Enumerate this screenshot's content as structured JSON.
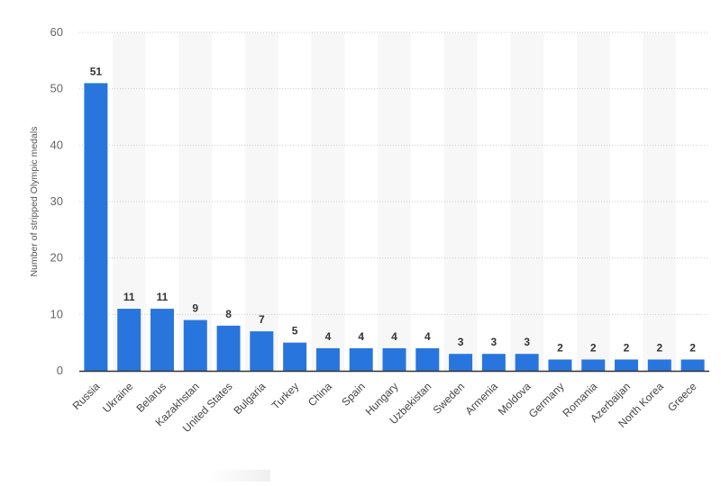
{
  "chart_data": {
    "type": "bar",
    "categories": [
      "Russia",
      "Ukraine",
      "Belarus",
      "Kazakhstan",
      "United States",
      "Bulgaria",
      "Turkey",
      "China",
      "Spain",
      "Hungary",
      "Uzbekistan",
      "Sweden",
      "Armenia",
      "Moldova",
      "Germany",
      "Romania",
      "Azerbaijan",
      "North Korea",
      "Greece"
    ],
    "values": [
      51,
      11,
      11,
      9,
      8,
      7,
      5,
      4,
      4,
      4,
      4,
      3,
      3,
      3,
      2,
      2,
      2,
      2,
      2
    ],
    "ylabel": "Number of stripped Olympic medals",
    "xlabel": "",
    "ylim": [
      0,
      60
    ],
    "yticks": [
      0,
      10,
      20,
      30,
      40,
      50,
      60
    ],
    "grid": true,
    "data_labels": true,
    "bar_color": "#2876dd",
    "band_color": "#f7f7f7",
    "grid_color": "#cccccc",
    "axis_color": "#333333"
  }
}
